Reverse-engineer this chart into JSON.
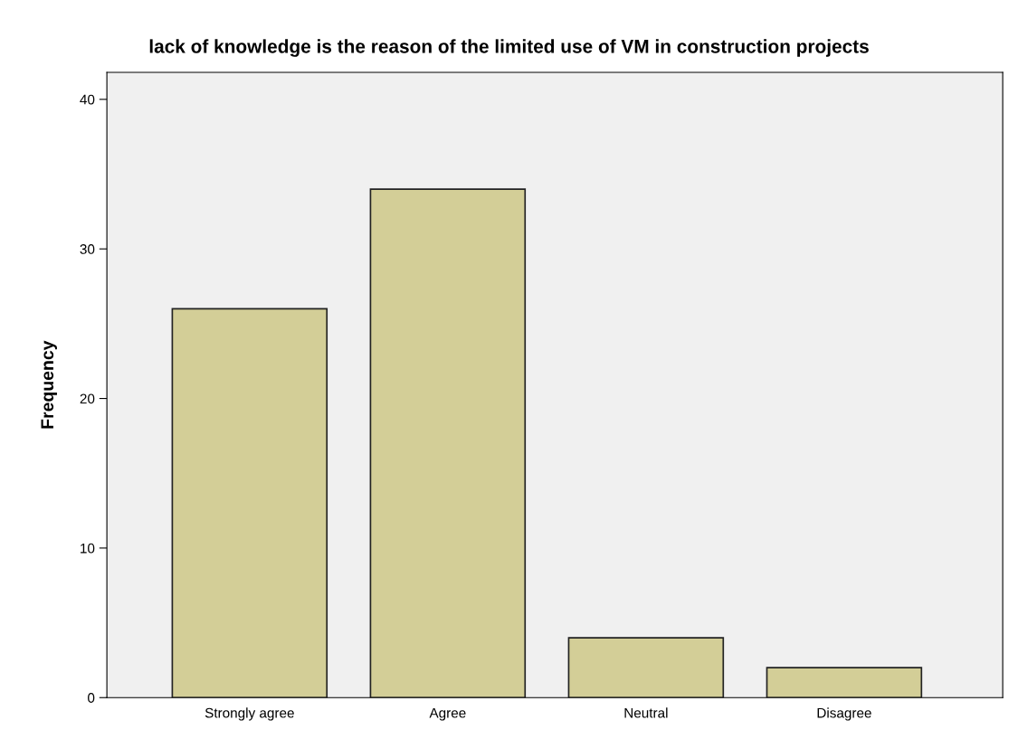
{
  "chart_data": {
    "type": "bar",
    "title": "lack of knowledge is the reason of the limited use of VM in construction projects",
    "ylabel": "Frequency",
    "categories": [
      "Strongly agree",
      "Agree",
      "Neutral",
      "Disagree"
    ],
    "values": [
      26,
      34,
      4,
      2
    ],
    "color": "#d3ce97",
    "ylim": [
      0,
      41.8
    ],
    "yticks": [
      0,
      10,
      20,
      30,
      40
    ],
    "grid": false,
    "legend": false
  }
}
